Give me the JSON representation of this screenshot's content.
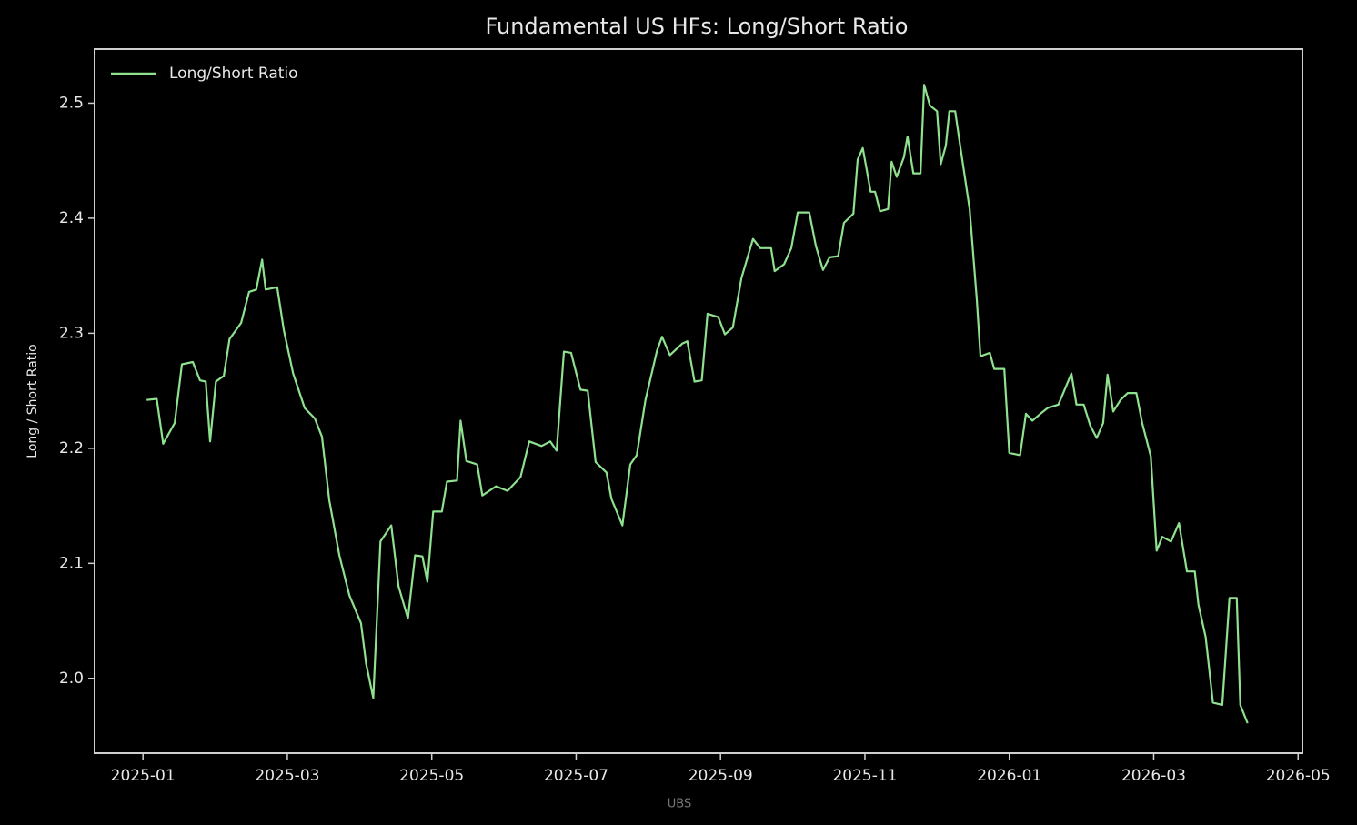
{
  "chart_data": {
    "type": "line",
    "title": "Fundamental US HFs: Long/Short Ratio",
    "y_label": "Long / Short Ratio",
    "source": "UBS",
    "legend": "upper left",
    "xlim": [
      -0.67,
      16.06
    ],
    "xticks": [
      {
        "value": 0,
        "label": "2025-01"
      },
      {
        "value": 2,
        "label": "2025-03"
      },
      {
        "value": 4,
        "label": "2025-05"
      },
      {
        "value": 6,
        "label": "2025-07"
      },
      {
        "value": 8,
        "label": "2025-09"
      },
      {
        "value": 10,
        "label": "2025-11"
      },
      {
        "value": 12,
        "label": "2026-01"
      },
      {
        "value": 14,
        "label": "2026-03"
      },
      {
        "value": 16,
        "label": "2026-05"
      }
    ],
    "ylim": [
      1.935,
      2.547
    ],
    "yticks": [
      {
        "value": 2,
        "label": "2.0"
      },
      2.1,
      2.2,
      2.3,
      2.4,
      2.5
    ],
    "x": [
      0.05,
      0.19,
      0.28,
      0.44,
      0.54,
      0.69,
      0.79,
      0.87,
      0.93,
      1.01,
      1.12,
      1.2,
      1.36,
      1.47,
      1.57,
      1.65,
      1.7,
      1.86,
      1.95,
      2.08,
      2.24,
      2.38,
      2.48,
      2.58,
      2.72,
      2.86,
      3.02,
      3.09,
      3.19,
      3.29,
      3.44,
      3.54,
      3.67,
      3.77,
      3.87,
      3.94,
      4.02,
      4.14,
      4.21,
      4.35,
      4.4,
      4.48,
      4.63,
      4.7,
      4.89,
      5.05,
      5.23,
      5.35,
      5.52,
      5.64,
      5.73,
      5.83,
      5.93,
      6.06,
      6.16,
      6.27,
      6.42,
      6.49,
      6.64,
      6.75,
      6.84,
      6.96,
      7.12,
      7.19,
      7.3,
      7.47,
      7.54,
      7.64,
      7.74,
      7.82,
      7.97,
      8.06,
      8.17,
      8.29,
      8.45,
      8.55,
      8.7,
      8.75,
      8.88,
      8.98,
      9.07,
      9.23,
      9.32,
      9.42,
      9.51,
      9.63,
      9.71,
      9.84,
      9.9,
      9.97,
      10.08,
      10.14,
      10.21,
      10.32,
      10.37,
      10.44,
      10.54,
      10.59,
      10.67,
      10.77,
      10.82,
      10.9,
      11.0,
      11.05,
      11.12,
      11.17,
      11.25,
      11.32,
      11.45,
      11.55,
      11.6,
      11.73,
      11.79,
      11.93,
      12.0,
      12.15,
      12.23,
      12.32,
      12.43,
      12.53,
      12.68,
      12.76,
      12.86,
      12.93,
      13.03,
      13.12,
      13.21,
      13.3,
      13.36,
      13.44,
      13.54,
      13.64,
      13.76,
      13.84,
      13.96,
      14.04,
      14.12,
      14.24,
      14.35,
      14.46,
      14.57,
      14.62,
      14.72,
      14.82,
      14.95,
      15.05,
      15.15,
      15.2,
      15.3
    ],
    "series": [
      {
        "name": "Long/Short Ratio",
        "color": "#8fe08f",
        "values": [
          2.242,
          2.243,
          2.204,
          2.222,
          2.273,
          2.275,
          2.259,
          2.258,
          2.206,
          2.258,
          2.263,
          2.295,
          2.309,
          2.336,
          2.338,
          2.364,
          2.338,
          2.34,
          2.303,
          2.265,
          2.235,
          2.226,
          2.21,
          2.155,
          2.107,
          2.072,
          2.048,
          2.013,
          1.983,
          2.119,
          2.133,
          2.08,
          2.052,
          2.107,
          2.106,
          2.084,
          2.145,
          2.145,
          2.171,
          2.172,
          2.224,
          2.189,
          2.186,
          2.159,
          2.167,
          2.163,
          2.175,
          2.206,
          2.202,
          2.206,
          2.198,
          2.284,
          2.283,
          2.251,
          2.25,
          2.188,
          2.179,
          2.156,
          2.133,
          2.186,
          2.194,
          2.242,
          2.285,
          2.297,
          2.281,
          2.291,
          2.293,
          2.258,
          2.259,
          2.317,
          2.314,
          2.299,
          2.305,
          2.348,
          2.382,
          2.374,
          2.374,
          2.354,
          2.36,
          2.374,
          2.405,
          2.405,
          2.376,
          2.355,
          2.366,
          2.367,
          2.396,
          2.404,
          2.451,
          2.461,
          2.423,
          2.423,
          2.406,
          2.408,
          2.449,
          2.436,
          2.453,
          2.471,
          2.439,
          2.439,
          2.516,
          2.498,
          2.493,
          2.447,
          2.463,
          2.493,
          2.493,
          2.463,
          2.408,
          2.329,
          2.28,
          2.283,
          2.269,
          2.269,
          2.196,
          2.194,
          2.23,
          2.224,
          2.23,
          2.235,
          2.238,
          2.25,
          2.265,
          2.238,
          2.238,
          2.22,
          2.209,
          2.222,
          2.264,
          2.232,
          2.242,
          2.248,
          2.248,
          2.222,
          2.193,
          2.111,
          2.123,
          2.119,
          2.135,
          2.093,
          2.093,
          2.064,
          2.036,
          1.979,
          1.977,
          2.07,
          2.07,
          1.977,
          1.961
        ]
      }
    ]
  }
}
